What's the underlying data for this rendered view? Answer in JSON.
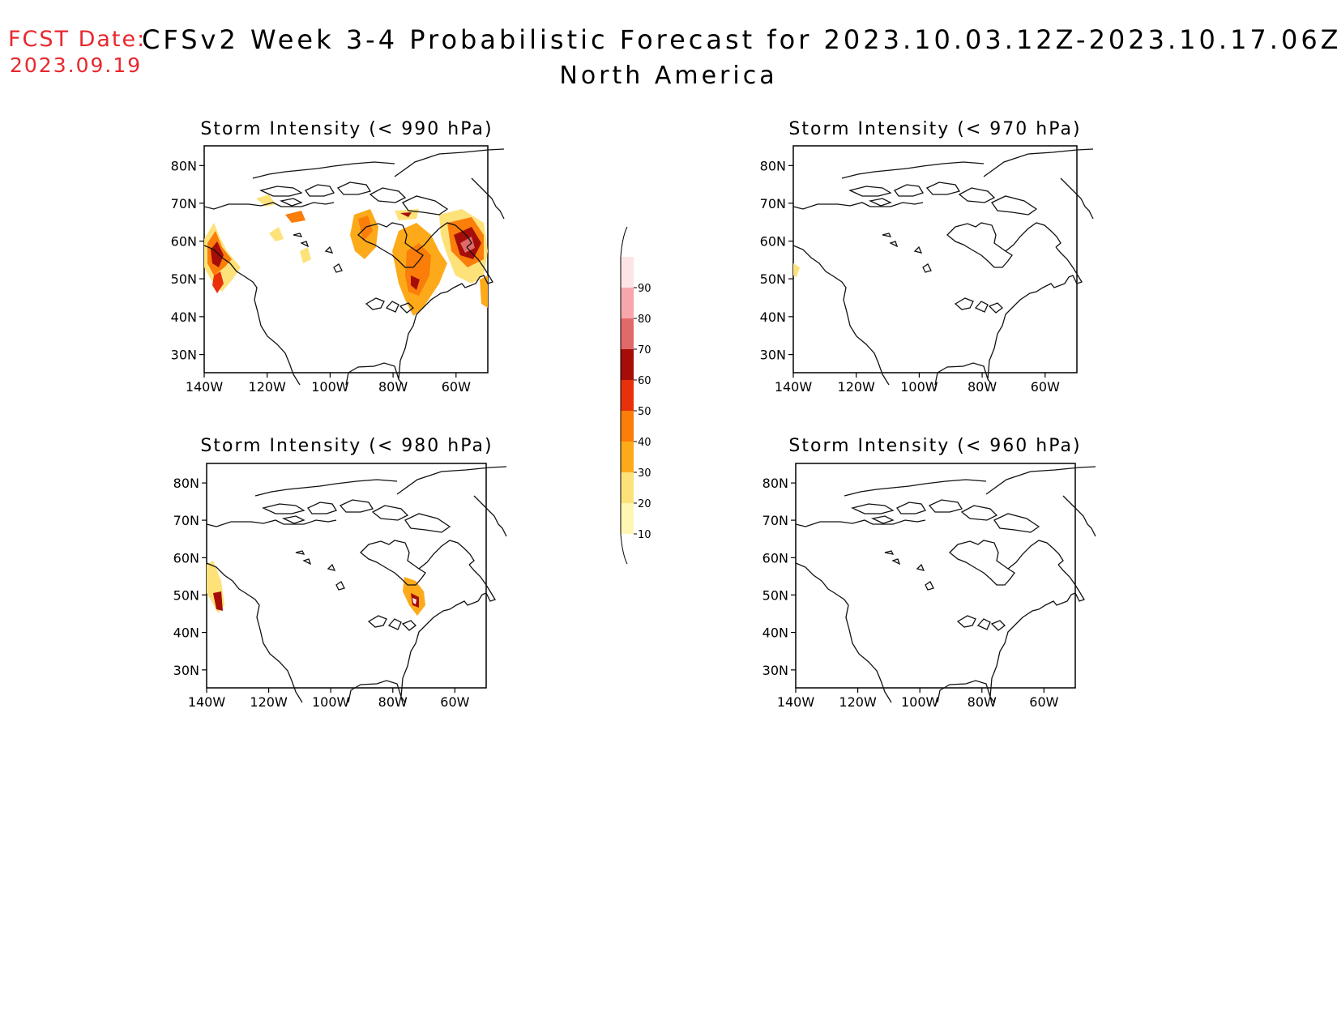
{
  "header": {
    "fcst_label": "FCST Date:",
    "fcst_date": "2023.09.19",
    "title": "CFSv2 Week 3-4 Probabilistic Forecast for 2023.10.03.12Z-2023.10.17.06Z",
    "subtitle": "North America"
  },
  "map_axes": {
    "lat_labels": [
      "80N",
      "70N",
      "60N",
      "50N",
      "40N",
      "30N"
    ],
    "lon_labels": [
      "140W",
      "120W",
      "100W",
      "80W",
      "60W"
    ]
  },
  "panels": [
    {
      "id": "p990",
      "title": "Storm Intensity (< 990 hPa)",
      "probability_regions": "widespread: Pacific NW coast, N Canada, Hudson Bay, Great Lakes/Quebec, Labrador"
    },
    {
      "id": "p970",
      "title": "Storm Intensity (< 970 hPa)",
      "probability_regions": "small patch off Pacific coast near 52N"
    },
    {
      "id": "p980",
      "title": "Storm Intensity (< 980 hPa)",
      "probability_regions": "Pacific NW coast, Quebec"
    },
    {
      "id": "p960",
      "title": "Storm Intensity (< 960 hPa)",
      "probability_regions": "none"
    }
  ],
  "colorbar": {
    "levels": [
      "10",
      "20",
      "30",
      "40",
      "50",
      "60",
      "70",
      "80",
      "90"
    ],
    "colors": [
      "#fef6b2",
      "#fde27a",
      "#fdaa1a",
      "#fb7d0a",
      "#e8310a",
      "#a60d08",
      "#e06a6a",
      "#f7a7ab",
      "#fde4e6"
    ]
  }
}
